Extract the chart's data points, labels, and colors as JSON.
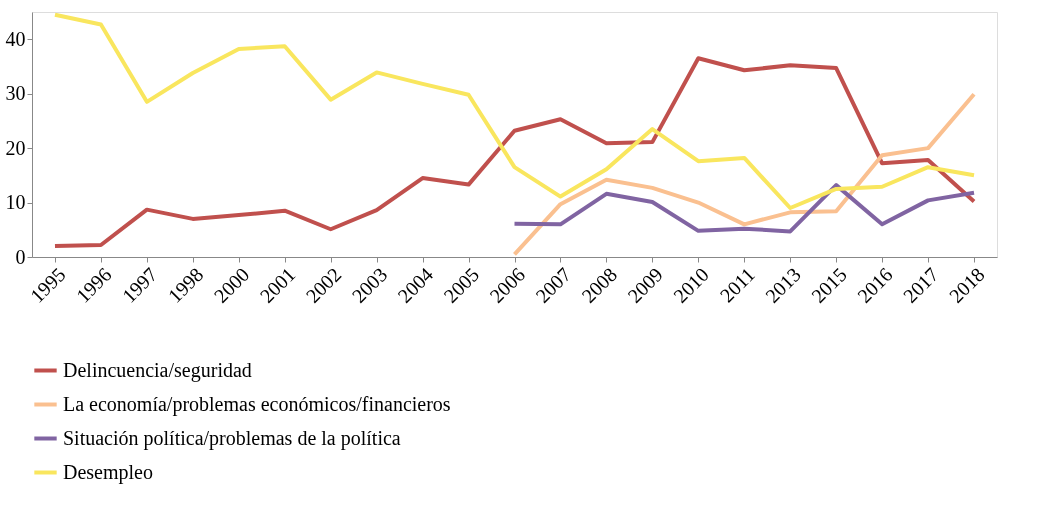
{
  "chart_data": {
    "type": "line",
    "categories": [
      "1995",
      "1996",
      "1997",
      "1998",
      "2000",
      "2001",
      "2002",
      "2003",
      "2004",
      "2005",
      "2006",
      "2007",
      "2008",
      "2009",
      "2010",
      "2011",
      "2013",
      "2015",
      "2016",
      "2017",
      "2018"
    ],
    "series": [
      {
        "name": "Delincuencia/seguridad",
        "color": "#c0504d",
        "values": [
          2.0,
          2.2,
          8.7,
          7.0,
          7.7,
          8.5,
          5.1,
          8.6,
          14.5,
          13.3,
          23.2,
          25.3,
          20.9,
          21.1,
          36.5,
          34.3,
          35.2,
          34.7,
          17.2,
          17.8,
          10.2
        ]
      },
      {
        "name": "La economía/problemas económicos/financieros",
        "color": "#fac090",
        "values": [
          null,
          null,
          null,
          null,
          null,
          null,
          null,
          null,
          null,
          null,
          0.5,
          9.7,
          14.2,
          12.7,
          10.0,
          6.0,
          8.2,
          8.4,
          18.7,
          20.0,
          29.9
        ]
      },
      {
        "name": "Situación política/problemas de la política",
        "color": "#8064a2",
        "values": [
          null,
          null,
          null,
          null,
          null,
          null,
          null,
          null,
          null,
          null,
          6.1,
          6.0,
          11.6,
          10.1,
          4.8,
          5.2,
          4.7,
          13.2,
          6.0,
          10.4,
          11.8
        ]
      },
      {
        "name": "Desempleo",
        "color": "#f9e65e",
        "values": [
          44.5,
          42.7,
          28.5,
          33.8,
          38.2,
          38.7,
          28.9,
          33.9,
          31.8,
          29.8,
          16.5,
          11.1,
          16.1,
          23.5,
          17.6,
          18.2,
          9.0,
          12.5,
          12.9,
          16.5,
          15.0
        ]
      }
    ],
    "ylim": [
      0,
      45
    ],
    "yticks": [
      0,
      10,
      20,
      30,
      40
    ],
    "grid": false,
    "legend": "bottom",
    "marker": "none",
    "line_style": "solid"
  }
}
